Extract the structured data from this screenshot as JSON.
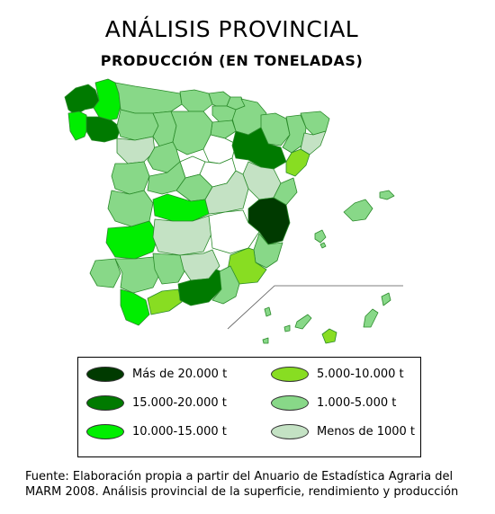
{
  "title": "ANÁLISIS PROVINCIAL",
  "subtitle": "PRODUCCIÓN (EN TONELADAS)",
  "legend": [
    {
      "label": "Más de 20.000 t",
      "color": "#003a00"
    },
    {
      "label": "15.000-20.000 t",
      "color": "#007a00"
    },
    {
      "label": "10.000-15.000 t",
      "color": "#00ee00"
    },
    {
      "label": "5.000-10.000 t",
      "color": "#88dd22"
    },
    {
      "label": "1.000-5.000 t",
      "color": "#88d888"
    },
    {
      "label": "Menos de 1000 t",
      "color": "#c4e2c4"
    }
  ],
  "colors": {
    "none": "#ffffff",
    "border": "#2a8a2a"
  },
  "source": {
    "line1": "Fuente: Elaboración propia a partir del Anuario de Estadística Agraria del",
    "line2": "MARM 2008. Análisis provincial de la superficie, rendimiento y producción"
  }
}
